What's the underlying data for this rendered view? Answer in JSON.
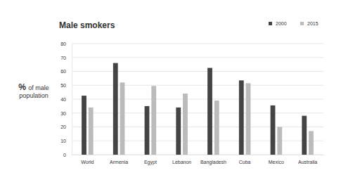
{
  "chart_data": {
    "type": "bar",
    "title": "Male smokers",
    "y_label": "% of male population",
    "categories": [
      "World",
      "Armenia",
      "Egypt",
      "Lebanon",
      "Bangladesh",
      "Cuba",
      "Mexico",
      "Australia"
    ],
    "series": [
      {
        "name": "2000",
        "color": "#444444",
        "values": [
          42.5,
          66,
          35,
          34,
          62.5,
          53.5,
          35.5,
          28
        ]
      },
      {
        "name": "2015",
        "color": "#bbbbbb",
        "values": [
          34,
          52,
          49.5,
          44,
          39,
          51.5,
          20,
          17
        ]
      }
    ],
    "ylim": [
      0,
      80
    ],
    "yticks": [
      0,
      10,
      20,
      30,
      40,
      50,
      60,
      70,
      80
    ],
    "grid": true,
    "legend": "top-right"
  }
}
